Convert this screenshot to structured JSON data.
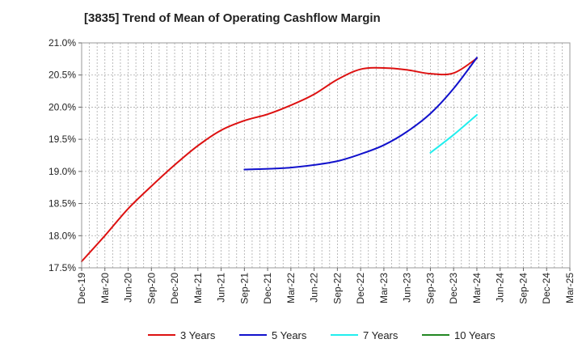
{
  "chart_data": {
    "type": "line",
    "title": "[3835]  Trend of Mean of Operating Cashflow Margin",
    "xlabel": "",
    "ylabel": "",
    "ylim": [
      17.5,
      21.0
    ],
    "xlim": [
      "2019-12",
      "2025-03"
    ],
    "grid": true,
    "legend_position": "bottom",
    "y_ticks": [
      "17.5%",
      "18.0%",
      "18.5%",
      "19.0%",
      "19.5%",
      "20.0%",
      "20.5%",
      "21.0%"
    ],
    "x_ticks": [
      "Dec-19",
      "Mar-20",
      "Jun-20",
      "Sep-20",
      "Dec-20",
      "Mar-21",
      "Jun-21",
      "Sep-21",
      "Dec-21",
      "Mar-22",
      "Jun-22",
      "Sep-22",
      "Dec-22",
      "Mar-23",
      "Jun-23",
      "Sep-23",
      "Dec-23",
      "Mar-24",
      "Jun-24",
      "Sep-24",
      "Dec-24",
      "Mar-25"
    ],
    "series": [
      {
        "name": "3 Years",
        "color": "#dd1111",
        "x": [
          "2019-12",
          "2020-03",
          "2020-06",
          "2020-09",
          "2020-12",
          "2021-03",
          "2021-06",
          "2021-09",
          "2021-12",
          "2022-03",
          "2022-06",
          "2022-09",
          "2022-12",
          "2023-03",
          "2023-06",
          "2023-09",
          "2023-12",
          "2024-03"
        ],
        "values": [
          17.6,
          18.0,
          18.42,
          18.77,
          19.1,
          19.4,
          19.64,
          19.79,
          19.89,
          20.03,
          20.2,
          20.43,
          20.59,
          20.61,
          20.58,
          20.52,
          20.53,
          20.76
        ]
      },
      {
        "name": "5 Years",
        "color": "#1111cc",
        "x": [
          "2021-09",
          "2021-12",
          "2022-03",
          "2022-06",
          "2022-09",
          "2022-12",
          "2023-03",
          "2023-06",
          "2023-09",
          "2023-12",
          "2024-03"
        ],
        "values": [
          19.03,
          19.04,
          19.06,
          19.1,
          19.16,
          19.27,
          19.41,
          19.62,
          19.9,
          20.29,
          20.77
        ]
      },
      {
        "name": "7 Years",
        "color": "#22eeee",
        "x": [
          "2023-09",
          "2023-12",
          "2024-03"
        ],
        "values": [
          19.29,
          19.57,
          19.88
        ]
      },
      {
        "name": "10 Years",
        "color": "#228822",
        "x": [],
        "values": []
      }
    ]
  }
}
